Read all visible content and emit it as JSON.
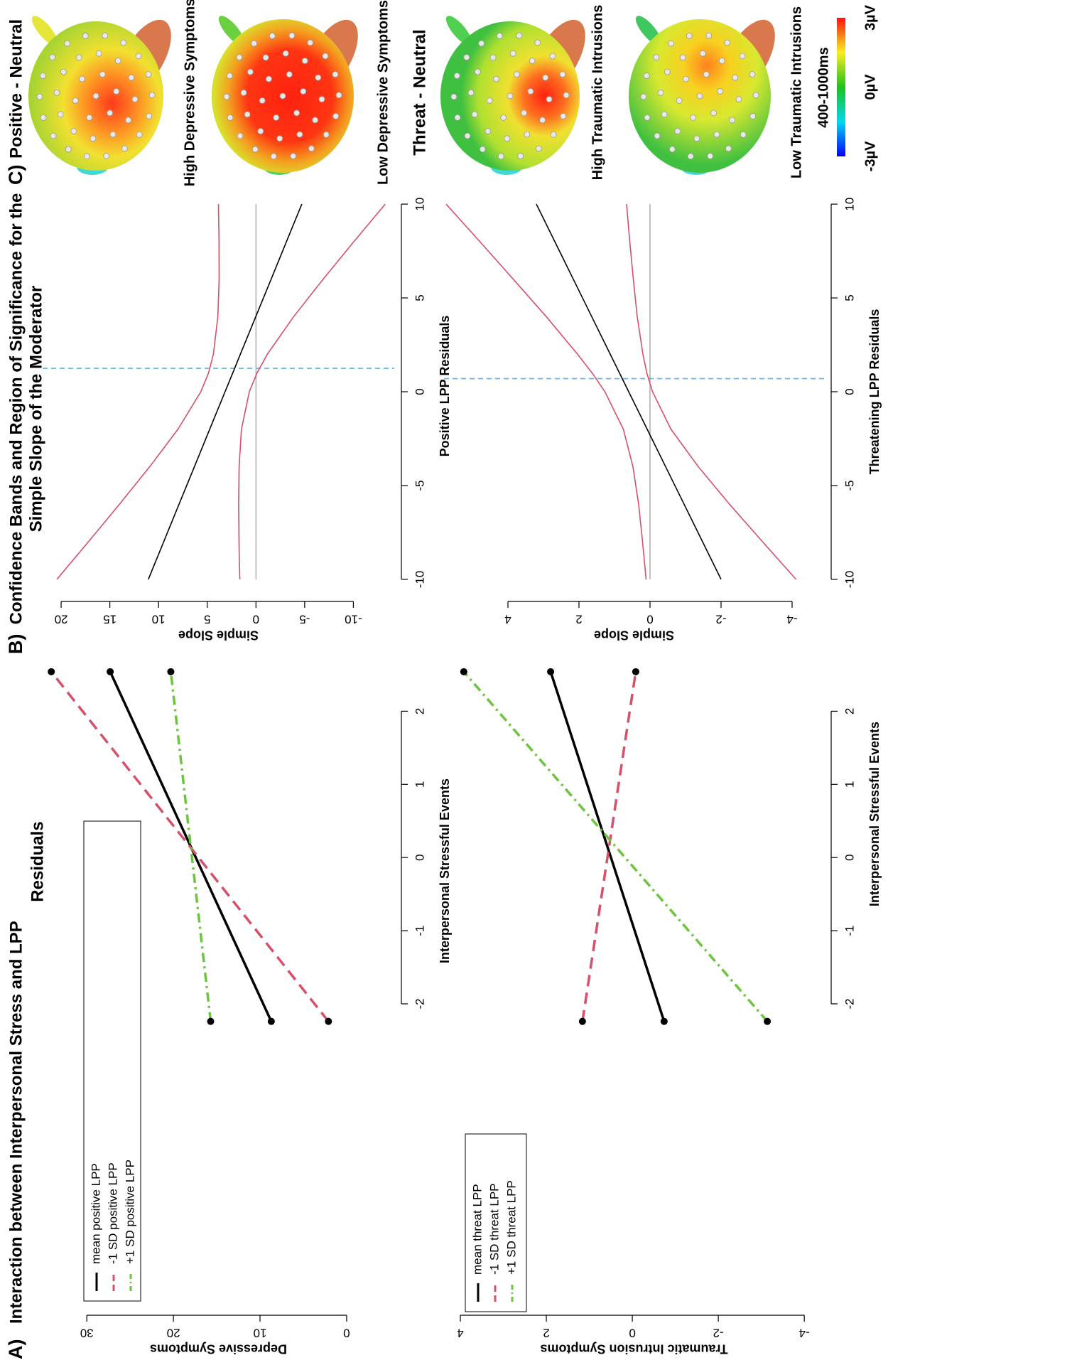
{
  "panel_labels": [
    "A)",
    "B)",
    "C)"
  ],
  "panel_titles": [
    [
      "Interaction between Interpersonal Stress and LPP",
      "Residuals"
    ],
    [
      "Confidence Bands and Region of Significance for the",
      "Simple Slope of the Moderator"
    ]
  ],
  "chart_data": [
    {
      "type": "line",
      "x_label": "Interpersonal Stressful Events",
      "y_label": "Depressive Symptoms",
      "x": [
        -2.24,
        2.54
      ],
      "series": [
        {
          "name": "mean positive LPP",
          "color": "#000000",
          "line_style": "solid",
          "values": [
            8.7,
            27.3
          ]
        },
        {
          "name": "-1 SD positive LPP",
          "color": "#d6506a",
          "line_style": "dashed",
          "values": [
            2.1,
            34.1
          ]
        },
        {
          "name": "+1 SD positive LPP",
          "color": "#6dc53f",
          "line_style": "dashdot",
          "values": [
            15.7,
            20.3
          ]
        }
      ],
      "markers": true,
      "marker_color": "#000000",
      "line_width": 3.5,
      "xlim": [
        -6.16,
        2.83
      ],
      "ylim": [
        -5.5,
        35.1
      ],
      "xticks": [
        -2,
        -1,
        0,
        1,
        2
      ],
      "yticks": [
        0,
        10,
        20,
        30
      ],
      "legend": "top-left"
    },
    {
      "type": "line",
      "x_label": "Interpersonal Stressful Events",
      "y_label": "Traumatic Intrusion Symptoms",
      "x": [
        -2.24,
        2.54
      ],
      "series": [
        {
          "name": "mean threat LPP",
          "color": "#000000",
          "line_style": "solid",
          "values": [
            -0.74,
            1.9
          ]
        },
        {
          "name": "-1 SD threat LPP",
          "color": "#d6506a",
          "line_style": "dashed",
          "values": [
            1.16,
            -0.08
          ]
        },
        {
          "name": "+1 SD threat LPP",
          "color": "#6dc53f",
          "line_style": "dashdot",
          "values": [
            -3.14,
            3.92
          ]
        }
      ],
      "markers": true,
      "marker_color": "#000000",
      "line_width": 3.5,
      "xlim": [
        -6.16,
        2.83
      ],
      "ylim": [
        -4.46,
        4.38
      ],
      "xticks": [
        -2,
        -1,
        0,
        1,
        2
      ],
      "yticks": [
        -4,
        -2,
        0,
        2,
        4
      ],
      "legend": "top-left"
    },
    {
      "type": "line",
      "x_label": "Positive LPP Residuals",
      "y_label": "Simple Slope",
      "x": [
        -10,
        -8,
        -6,
        -4,
        -2,
        0,
        1,
        2,
        4,
        6,
        8,
        10
      ],
      "series": [
        {
          "color": "#000000",
          "line_style": "solid",
          "values": [
            11.05,
            9.47,
            7.9,
            6.32,
            4.75,
            3.17,
            2.38,
            1.6,
            0.02,
            -1.56,
            -3.13,
            -4.71
          ]
        },
        {
          "color": "#d6506a",
          "line_style": "solid",
          "values": [
            20.44,
            17.2,
            14.02,
            10.91,
            8.01,
            5.66,
            4.87,
            4.37,
            3.91,
            3.78,
            3.79,
            3.85
          ]
        },
        {
          "color": "#d6506a",
          "line_style": "solid",
          "values": [
            1.66,
            1.74,
            1.78,
            1.73,
            1.49,
            0.68,
            -0.11,
            -1.17,
            -3.87,
            -6.9,
            -10.05,
            -13.27
          ]
        }
      ],
      "line_width": 1.6,
      "hline": 0,
      "hline_color": "#9a9a9a",
      "vline": 1.25,
      "vline_color": "#6ab0de",
      "xlim": [
        -10.8,
        10.8
      ],
      "ylim": [
        -14.2,
        21.9
      ],
      "xticks": [
        -10,
        -5,
        0,
        5,
        10
      ],
      "yticks": [
        -10,
        -5,
        0,
        5,
        10,
        15,
        20
      ]
    },
    {
      "type": "line",
      "x_label": "Threatening LPP Residuals",
      "y_label": "Simple Slope",
      "x": [
        -10,
        -8,
        -6,
        -4,
        -2,
        0,
        1,
        2,
        4,
        6,
        8,
        10
      ],
      "series": [
        {
          "color": "#000000",
          "line_style": "solid",
          "values": [
            -2.0,
            -1.48,
            -0.96,
            -0.44,
            0.08,
            0.6,
            0.86,
            1.12,
            1.64,
            2.16,
            2.68,
            3.2
          ]
        },
        {
          "color": "#d6506a",
          "line_style": "solid",
          "values": [
            0.11,
            0.21,
            0.32,
            0.48,
            0.75,
            1.27,
            1.63,
            2.04,
            2.92,
            3.85,
            4.79,
            5.74
          ]
        },
        {
          "color": "#d6506a",
          "line_style": "solid",
          "values": [
            -4.11,
            -3.17,
            -2.24,
            -1.36,
            -0.59,
            -0.07,
            0.09,
            0.2,
            0.36,
            0.47,
            0.57,
            0.66
          ]
        }
      ],
      "line_width": 1.6,
      "hline": 0,
      "hline_color": "#9a9a9a",
      "vline": 0.7,
      "vline_color": "#6ab0de",
      "xlim": [
        -10.8,
        10.8
      ],
      "ylim": [
        -4.9,
        5.8
      ],
      "xticks": [
        -10,
        -5,
        0,
        5,
        10
      ],
      "yticks": [
        -4,
        -2,
        0,
        2,
        4
      ]
    }
  ],
  "topomaps": {
    "rows": [
      {
        "title": "Positive - Neutral",
        "maps": [
          "High Depressive Symptoms",
          "Low Depressive Symptoms"
        ]
      },
      {
        "title": "Threat - Neutral",
        "maps": [
          "High Traumatic Intrusions",
          "Low Traumatic Intrusions"
        ]
      }
    ],
    "colorbar": {
      "title": "400-1000ms",
      "clim": [
        -3,
        3
      ],
      "ticks": [
        {
          "value": -3,
          "label": "-3µV"
        },
        {
          "value": 0,
          "label": "0µV"
        },
        {
          "value": 3,
          "label": "3µV"
        }
      ]
    }
  }
}
